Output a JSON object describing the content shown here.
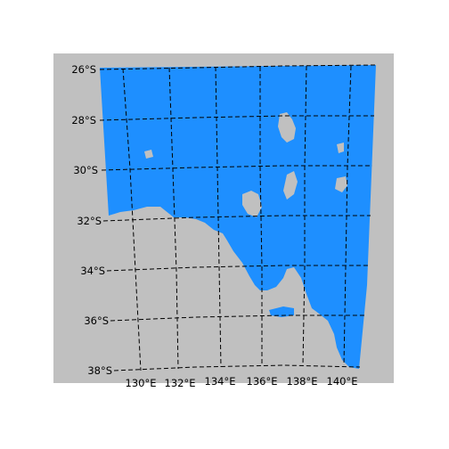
{
  "map": {
    "colors": {
      "background": "#c0c0c0",
      "region_fill": "#1e8fff",
      "land_outside": "#c0c0c0",
      "gridline": "#000000"
    },
    "lat_labels": [
      "26°S",
      "28°S",
      "30°S",
      "32°S",
      "34°S",
      "36°S",
      "38°S"
    ],
    "lon_labels": [
      "130°E",
      "132°E",
      "134°E",
      "136°E",
      "138°E",
      "140°E"
    ],
    "gridlines": "dashed"
  }
}
